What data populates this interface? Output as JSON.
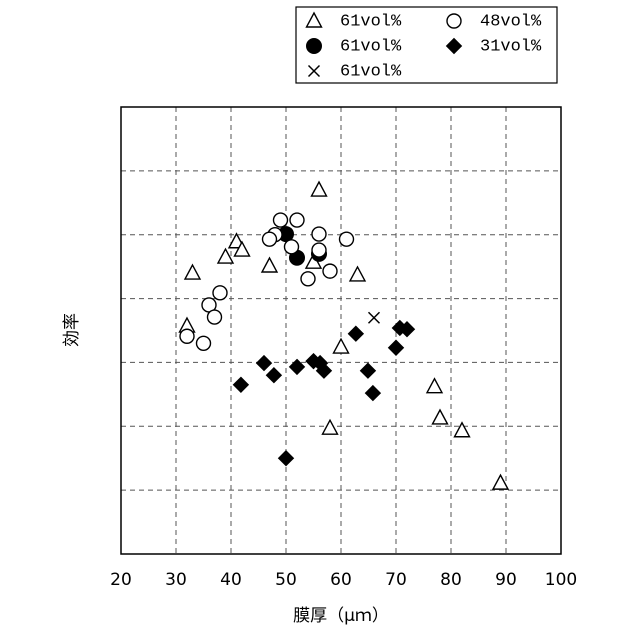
{
  "chart_data": {
    "type": "scatter",
    "x_label": "膜厚（μｍ）",
    "y_label": "効率",
    "xlim": [
      20,
      100
    ],
    "xticks": [
      20,
      30,
      40,
      50,
      60,
      70,
      80,
      90,
      100
    ],
    "ylim": [
      0,
      7
    ],
    "yticks": [
      1,
      2,
      3,
      4,
      5,
      6
    ],
    "ytick_labels": false,
    "grid": true,
    "series": [
      {
        "name": "61vol%",
        "marker": "triangle-open",
        "color": "#000",
        "x": [
          56,
          41,
          42,
          39,
          47,
          33,
          63,
          55,
          32,
          60,
          77,
          78,
          82,
          58,
          89
        ],
        "values": [
          5.7,
          4.89,
          4.76,
          4.65,
          4.51,
          4.4,
          4.37,
          4.57,
          3.57,
          3.24,
          2.62,
          2.13,
          1.93,
          1.97,
          1.11
        ]
      },
      {
        "name": "61vol%",
        "marker": "circle-filled",
        "color": "#000",
        "x": [
          50,
          52,
          56
        ],
        "values": [
          5.01,
          4.64,
          4.7
        ]
      },
      {
        "name": "61vol%",
        "marker": "cross",
        "color": "#000",
        "x": [
          66
        ],
        "values": [
          3.7
        ]
      },
      {
        "name": "48vol%",
        "marker": "circle-open",
        "color": "#000",
        "x": [
          49,
          52,
          48,
          47,
          51,
          56,
          56,
          61,
          58,
          54,
          38,
          36,
          37,
          32,
          35
        ],
        "values": [
          5.23,
          5.23,
          5.0,
          4.93,
          4.81,
          5.01,
          4.76,
          4.93,
          4.43,
          4.31,
          4.09,
          3.9,
          3.71,
          3.41,
          3.3
        ]
      },
      {
        "name": "31vol%",
        "marker": "diamond-filled",
        "color": "#000",
        "x": [
          62.7,
          70.7,
          72,
          70,
          46,
          52,
          55,
          56.2,
          56.9,
          47.8,
          41.8,
          64.9,
          65.8,
          50
        ],
        "values": [
          3.45,
          3.54,
          3.52,
          3.23,
          2.99,
          2.93,
          3.02,
          2.99,
          2.87,
          2.8,
          2.65,
          2.87,
          2.52,
          1.5
        ]
      }
    ],
    "legend": "top-right",
    "legend_columns": 2
  }
}
